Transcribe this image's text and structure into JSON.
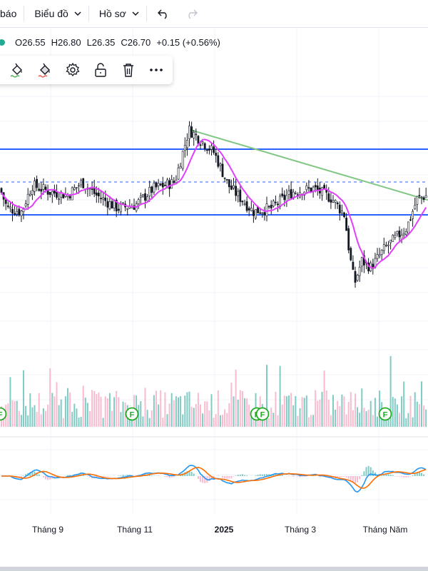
{
  "topbar": {
    "report_label": "báo",
    "chart_menu_label": "Biểu đồ",
    "profile_menu_label": "Hồ sơ"
  },
  "ohlc": {
    "open": "O26.55",
    "high": "H26.80",
    "low": "L26.35",
    "close": "C26.70",
    "change": "+0.15 (+0.56%)"
  },
  "colors": {
    "up_candle": "#22ab94",
    "down_candle": "#131722",
    "ma_line": "#e040fb",
    "horizontal_level": "#2962ff",
    "trend_line": "#81c784",
    "macd_line": "#2196f3",
    "signal_line": "#ff6d00",
    "volume_up": "#80cbc4",
    "volume_down": "#f8bbd0",
    "dividend_marker": "#22ab22"
  },
  "chart_data": {
    "type": "candlestick",
    "price_lines": {
      "resistance": 28.0,
      "dashed": 27.0,
      "support": 26.0
    },
    "trend_line": {
      "from": 28.6,
      "to": 26.45
    },
    "x_tick_labels": [
      "Tháng 9",
      "Tháng 11",
      "2025",
      "Tháng 3",
      "Tháng Năm"
    ],
    "dividend_markers": [
      "F",
      "F",
      "F",
      "F",
      "F"
    ],
    "last_bar": {
      "open": 26.55,
      "high": 26.8,
      "low": 26.35,
      "close": 26.7
    },
    "panes": [
      "price",
      "volume",
      "macd"
    ]
  }
}
